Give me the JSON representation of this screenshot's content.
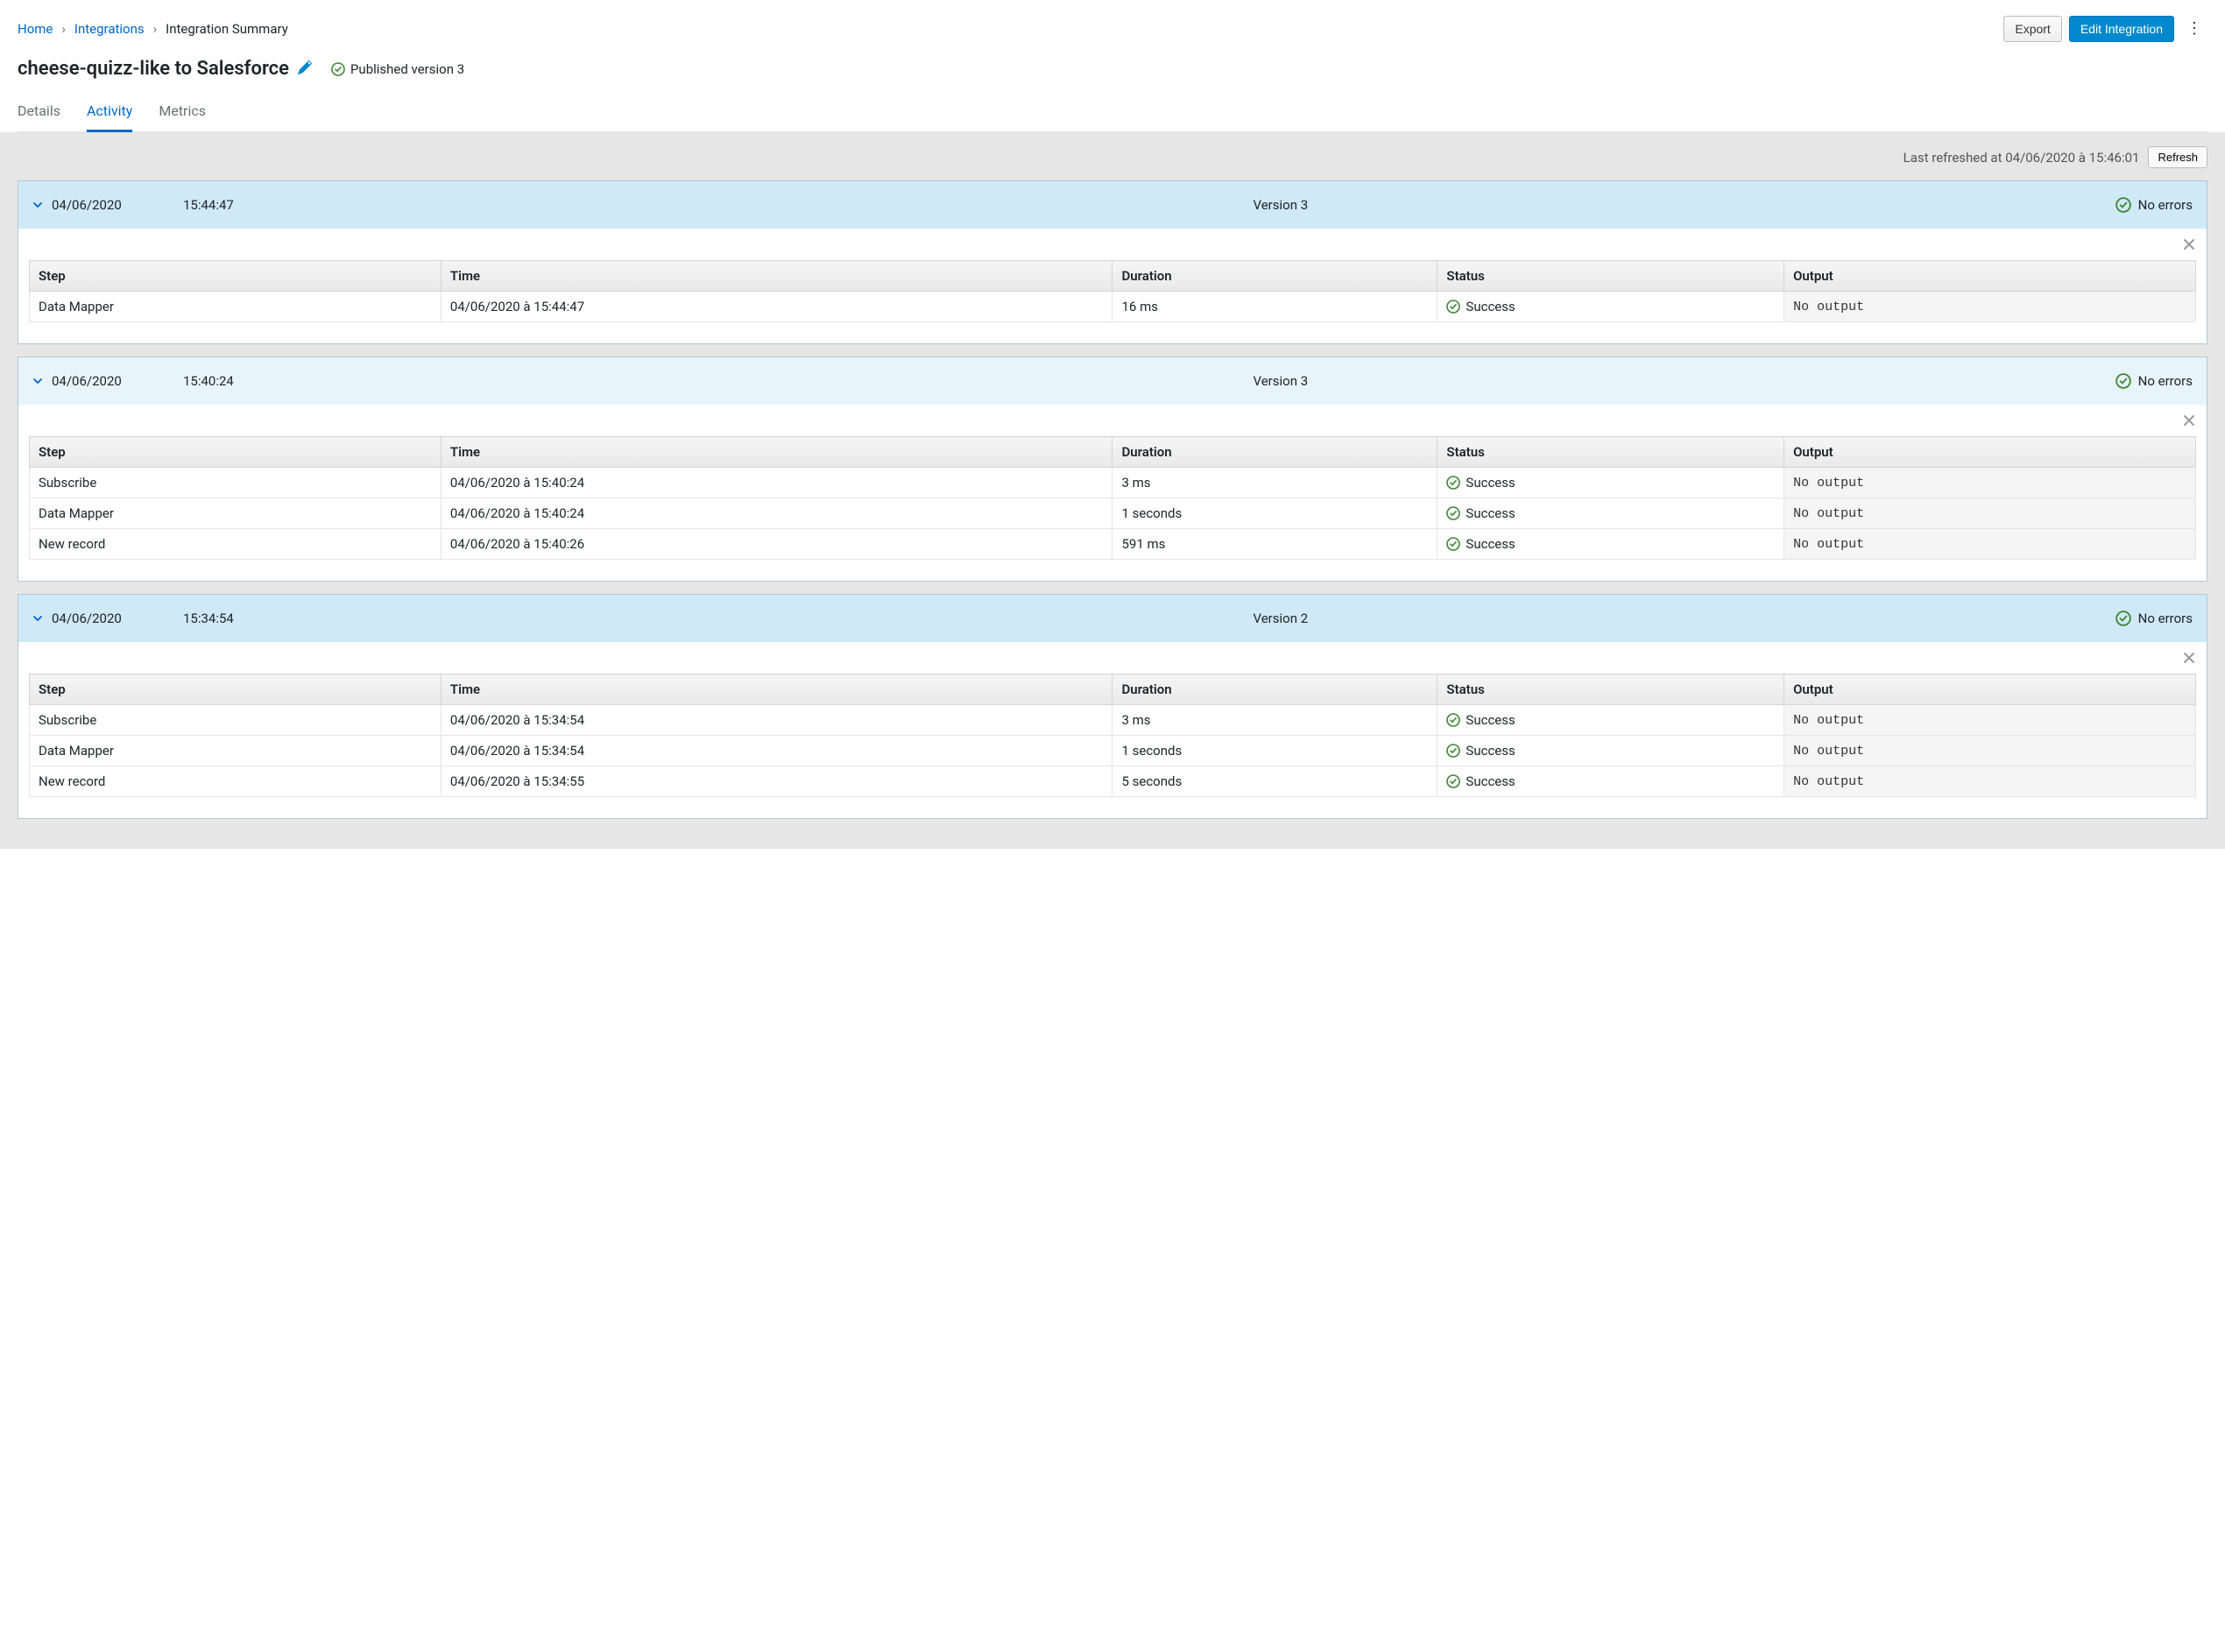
{
  "colors": {
    "link": "#0066cc",
    "primary_btn_bg": "#0088ce",
    "success_green": "#3e8635",
    "page_bg": "#e6e6e6",
    "header_blue": "#cfe9f7",
    "header_light": "#e8f4fb"
  },
  "breadcrumb": {
    "items": [
      {
        "label": "Home",
        "link": true
      },
      {
        "label": "Integrations",
        "link": true
      },
      {
        "label": "Integration Summary",
        "link": false
      }
    ]
  },
  "actions": {
    "export_label": "Export",
    "edit_label": "Edit Integration"
  },
  "title": "cheese-quizz-like to Salesforce",
  "published": "Published version 3",
  "tabs": [
    {
      "label": "Details",
      "active": false
    },
    {
      "label": "Activity",
      "active": true
    },
    {
      "label": "Metrics",
      "active": false
    }
  ],
  "refresh": {
    "text": "Last refreshed at 04/06/2020 à 15:46:01",
    "button": "Refresh"
  },
  "table_headers": {
    "step": "Step",
    "time": "Time",
    "duration": "Duration",
    "status": "Status",
    "output": "Output"
  },
  "activities": [
    {
      "date": "04/06/2020",
      "time": "15:44:47",
      "version": "Version 3",
      "status_text": "No errors",
      "header_style": "ah-blue",
      "steps": [
        {
          "step": "Data Mapper",
          "time": "04/06/2020 à 15:44:47",
          "duration": "16 ms",
          "status": "Success",
          "output": "No output"
        }
      ]
    },
    {
      "date": "04/06/2020",
      "time": "15:40:24",
      "version": "Version 3",
      "status_text": "No errors",
      "header_style": "ah-light",
      "steps": [
        {
          "step": "Subscribe",
          "time": "04/06/2020 à 15:40:24",
          "duration": "3 ms",
          "status": "Success",
          "output": "No output"
        },
        {
          "step": "Data Mapper",
          "time": "04/06/2020 à 15:40:24",
          "duration": "1 seconds",
          "status": "Success",
          "output": "No output"
        },
        {
          "step": "New record",
          "time": "04/06/2020 à 15:40:26",
          "duration": "591 ms",
          "status": "Success",
          "output": "No output"
        }
      ]
    },
    {
      "date": "04/06/2020",
      "time": "15:34:54",
      "version": "Version 2",
      "status_text": "No errors",
      "header_style": "ah-blue",
      "steps": [
        {
          "step": "Subscribe",
          "time": "04/06/2020 à 15:34:54",
          "duration": "3 ms",
          "status": "Success",
          "output": "No output"
        },
        {
          "step": "Data Mapper",
          "time": "04/06/2020 à 15:34:54",
          "duration": "1 seconds",
          "status": "Success",
          "output": "No output"
        },
        {
          "step": "New record",
          "time": "04/06/2020 à 15:34:55",
          "duration": "5 seconds",
          "status": "Success",
          "output": "No output"
        }
      ]
    }
  ]
}
